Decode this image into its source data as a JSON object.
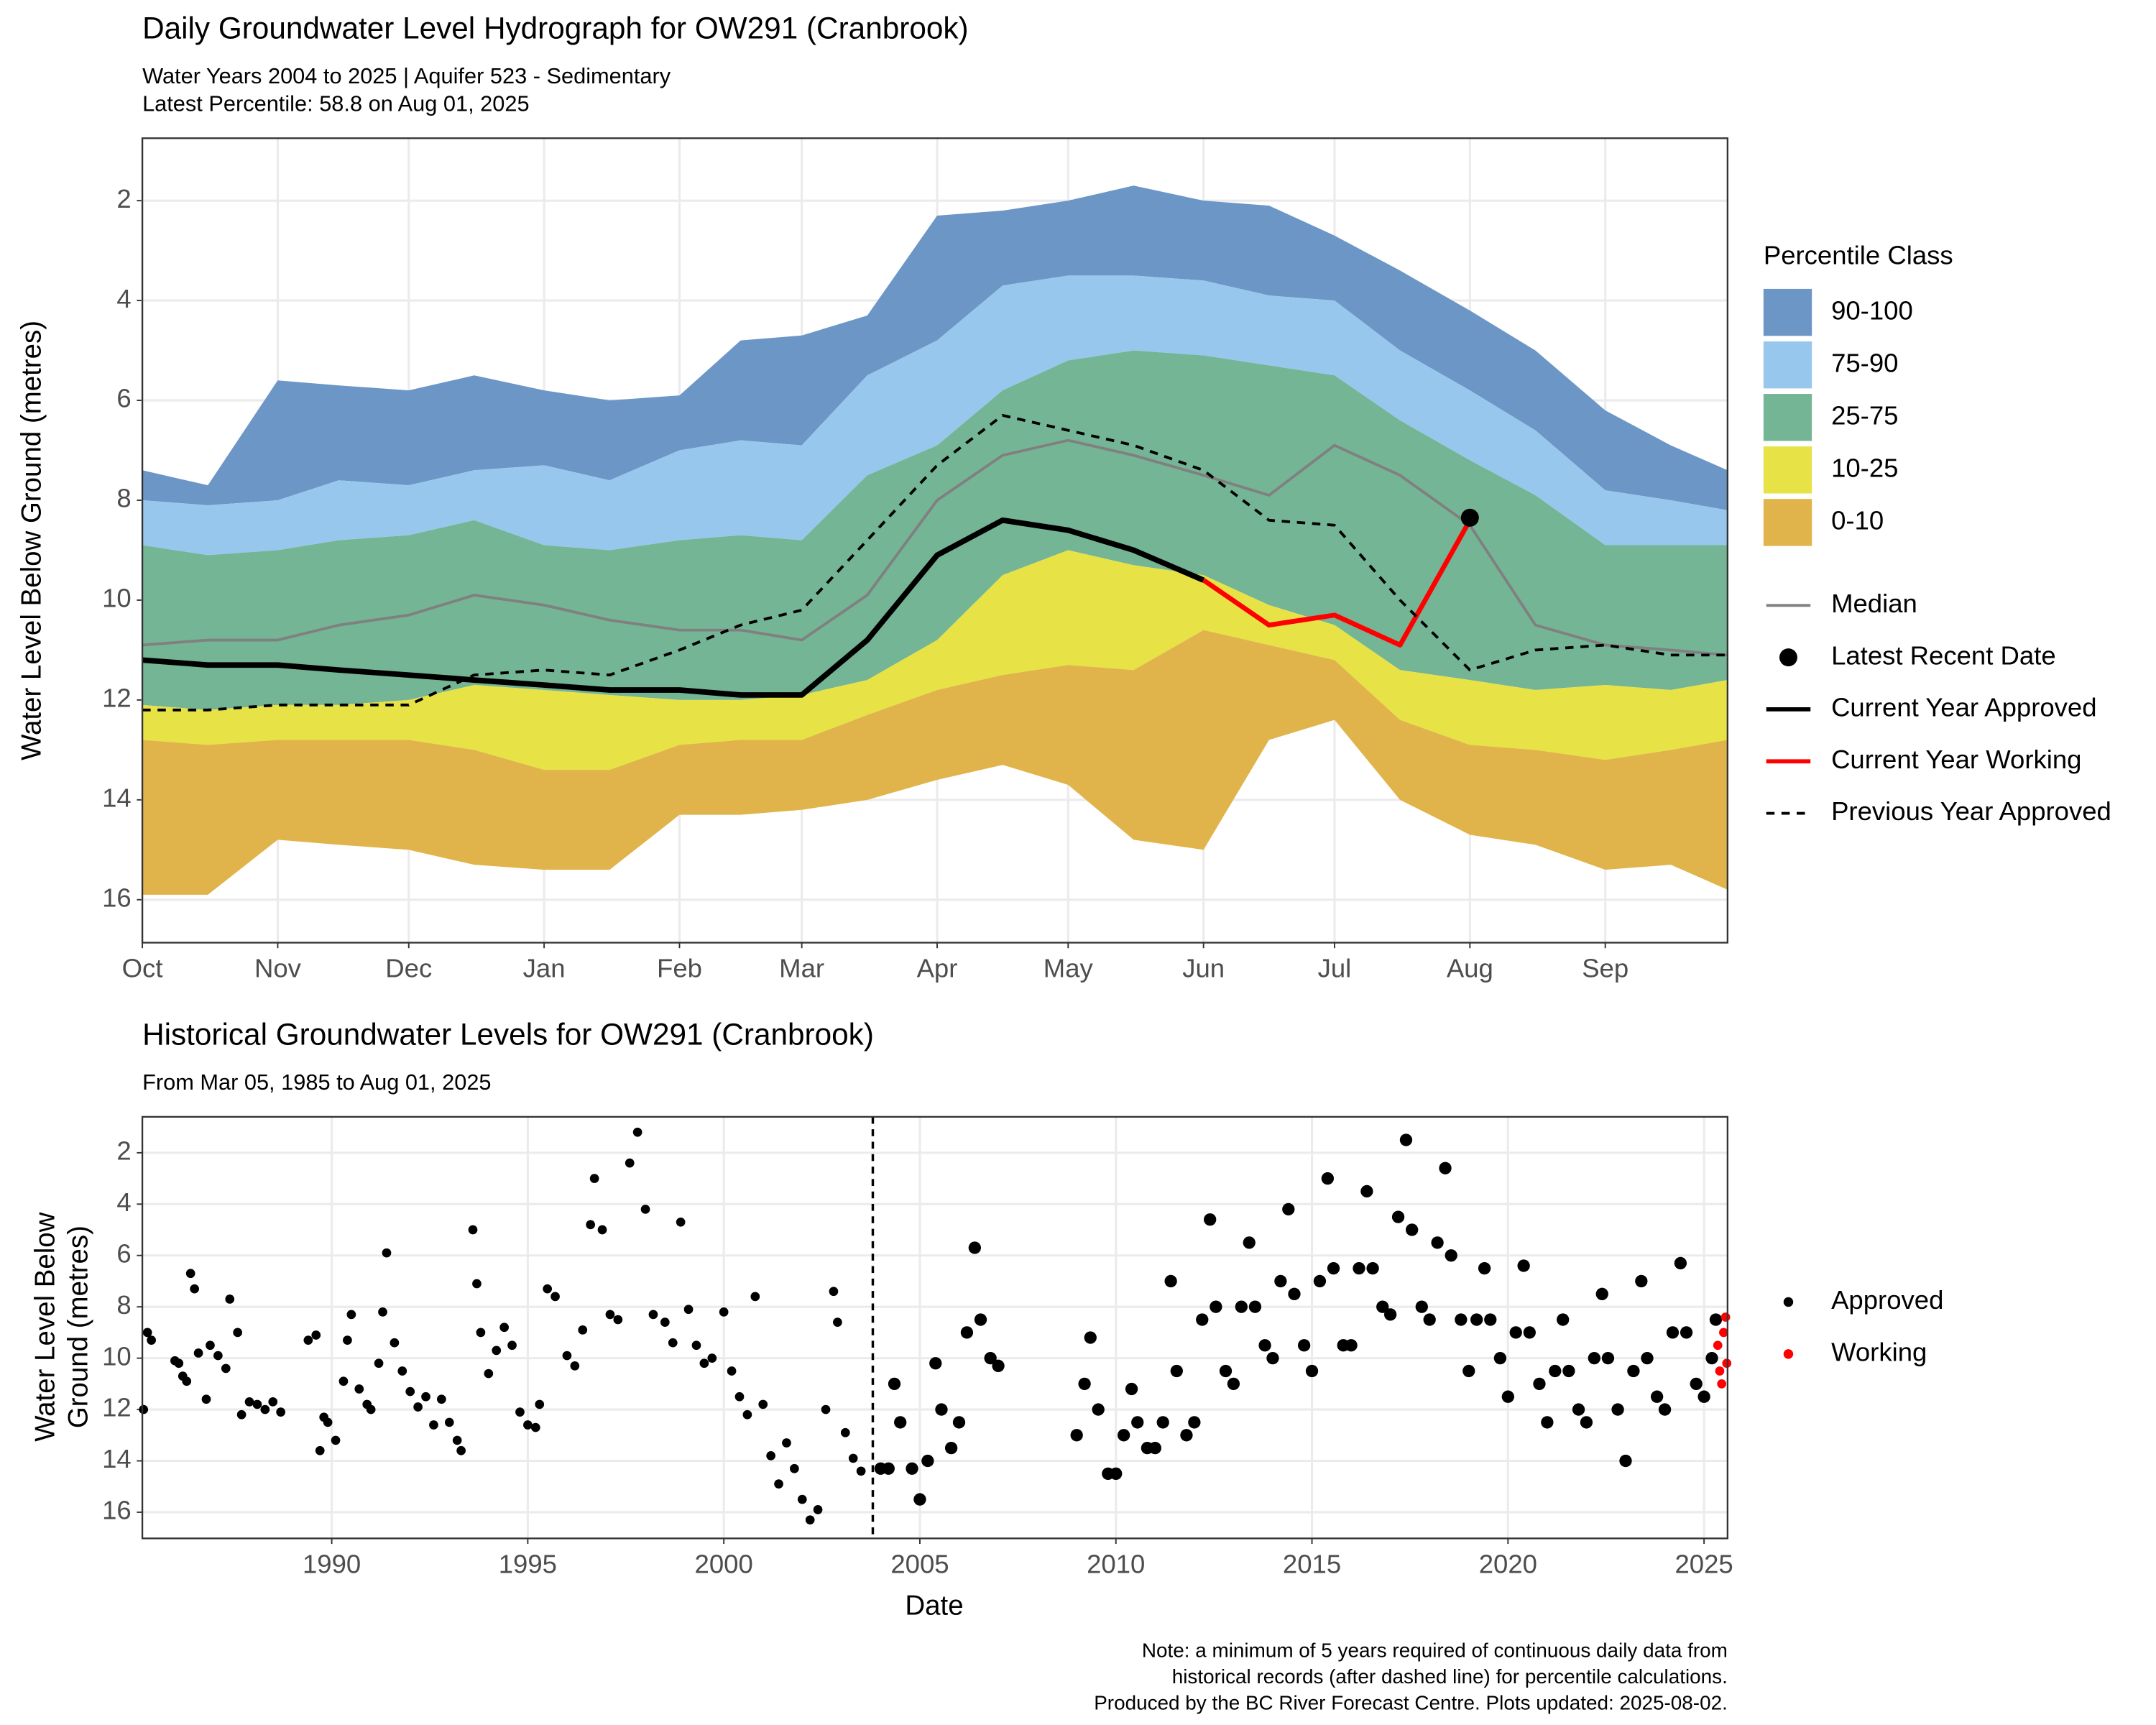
{
  "chart_data": [
    {
      "type": "hydrograph",
      "title": "Daily Groundwater Level Hydrograph for OW291 (Cranbrook)",
      "subtitle": [
        "Water Years 2004 to 2025 | Aquifer 523 - Sedimentary",
        "Latest Percentile: 58.8 on Aug 01, 2025"
      ],
      "ylabel": "Water Level Below Ground (metres)",
      "x": [
        0,
        15,
        31,
        45,
        61,
        76,
        92,
        107,
        123,
        137,
        151,
        166,
        182,
        197,
        212,
        227,
        243,
        258,
        273,
        288,
        304,
        319,
        335,
        350,
        363
      ],
      "xlim": [
        0,
        363
      ],
      "xticks": [
        {
          "value": 0,
          "label": "Oct"
        },
        {
          "value": 31,
          "label": "Nov"
        },
        {
          "value": 61,
          "label": "Dec"
        },
        {
          "value": 92,
          "label": "Jan"
        },
        {
          "value": 123,
          "label": "Feb"
        },
        {
          "value": 151,
          "label": "Mar"
        },
        {
          "value": 182,
          "label": "Apr"
        },
        {
          "value": 212,
          "label": "May"
        },
        {
          "value": 243,
          "label": "Jun"
        },
        {
          "value": 273,
          "label": "Jul"
        },
        {
          "value": 304,
          "label": "Aug"
        },
        {
          "value": 335,
          "label": "Sep"
        }
      ],
      "ylim": [
        16.86,
        0.75
      ],
      "yticks": [
        2,
        4,
        6,
        8,
        10,
        12,
        14,
        16
      ],
      "grid": true,
      "legend_title": "Percentile Class",
      "bands": [
        {
          "name": "90-100",
          "color": "#6b96c6",
          "from": [
            8.0,
            8.1,
            8.0,
            7.6,
            7.7,
            7.4,
            7.3,
            7.6,
            7.0,
            6.8,
            6.9,
            5.5,
            4.8,
            3.7,
            3.5,
            3.5,
            3.6,
            3.9,
            4.0,
            5.0,
            5.8,
            6.6,
            7.8,
            8.0,
            8.2
          ],
          "to": [
            7.4,
            7.7,
            5.6,
            5.7,
            5.8,
            5.5,
            5.8,
            6.0,
            5.9,
            4.8,
            4.7,
            4.3,
            2.3,
            2.2,
            2.0,
            1.7,
            2.0,
            2.1,
            2.7,
            3.4,
            4.2,
            5.0,
            6.2,
            6.9,
            7.4
          ]
        },
        {
          "name": "75-90",
          "color": "#98c7ed",
          "from": [
            8.9,
            9.1,
            9.0,
            8.8,
            8.7,
            8.4,
            8.9,
            9.0,
            8.8,
            8.7,
            8.8,
            7.5,
            6.9,
            5.8,
            5.2,
            5.0,
            5.1,
            5.3,
            5.5,
            6.4,
            7.2,
            7.9,
            8.9,
            8.9,
            8.9
          ],
          "to": [
            8.0,
            8.1,
            8.0,
            7.6,
            7.7,
            7.4,
            7.3,
            7.6,
            7.0,
            6.8,
            6.9,
            5.5,
            4.8,
            3.7,
            3.5,
            3.5,
            3.6,
            3.9,
            4.0,
            5.0,
            5.8,
            6.6,
            7.8,
            8.0,
            8.2
          ]
        },
        {
          "name": "25-75",
          "color": "#74b595",
          "from": [
            12.1,
            12.2,
            12.1,
            12.1,
            12.0,
            11.7,
            11.8,
            11.9,
            12.0,
            12.0,
            11.9,
            11.6,
            10.8,
            9.5,
            9.0,
            9.3,
            9.5,
            10.1,
            10.5,
            11.4,
            11.6,
            11.8,
            11.7,
            11.8,
            11.6
          ],
          "to": [
            8.9,
            9.1,
            9.0,
            8.8,
            8.7,
            8.4,
            8.9,
            9.0,
            8.8,
            8.7,
            8.8,
            7.5,
            6.9,
            5.8,
            5.2,
            5.0,
            5.1,
            5.3,
            5.5,
            6.4,
            7.2,
            7.9,
            8.9,
            8.9,
            8.9
          ]
        },
        {
          "name": "10-25",
          "color": "#e7e245",
          "from": [
            12.8,
            12.9,
            12.8,
            12.8,
            12.8,
            13.0,
            13.4,
            13.4,
            12.9,
            12.8,
            12.8,
            12.3,
            11.8,
            11.5,
            11.3,
            11.4,
            10.6,
            10.9,
            11.2,
            12.4,
            12.9,
            13.0,
            13.2,
            13.0,
            12.8
          ],
          "to": [
            12.1,
            12.2,
            12.1,
            12.1,
            12.0,
            11.7,
            11.8,
            11.9,
            12.0,
            12.0,
            11.9,
            11.6,
            10.8,
            9.5,
            9.0,
            9.3,
            9.5,
            10.1,
            10.5,
            11.4,
            11.6,
            11.8,
            11.7,
            11.8,
            11.6
          ]
        },
        {
          "name": "0-10",
          "color": "#e0b44a",
          "from": [
            15.9,
            15.9,
            14.8,
            14.9,
            15.0,
            15.3,
            15.4,
            15.4,
            14.3,
            14.3,
            14.2,
            14.0,
            13.6,
            13.3,
            13.7,
            14.8,
            15.0,
            12.8,
            12.4,
            14.0,
            14.7,
            14.9,
            15.4,
            15.3,
            15.8
          ],
          "to": [
            12.8,
            12.9,
            12.8,
            12.8,
            12.8,
            13.0,
            13.4,
            13.4,
            12.9,
            12.8,
            12.8,
            12.3,
            11.8,
            11.5,
            11.3,
            11.4,
            10.6,
            10.9,
            11.2,
            12.4,
            12.9,
            13.0,
            13.2,
            13.0,
            12.8
          ]
        }
      ],
      "lines": [
        {
          "name": "Median",
          "color": "#808080",
          "width": 2,
          "dashed": false,
          "values": [
            10.9,
            10.8,
            10.8,
            10.5,
            10.3,
            9.9,
            10.1,
            10.4,
            10.6,
            10.6,
            10.8,
            9.9,
            8.0,
            7.1,
            6.8,
            7.1,
            7.5,
            7.9,
            6.9,
            7.5,
            8.5,
            10.5,
            10.9,
            11.0,
            11.1
          ]
        },
        {
          "name": "Current Year Approved",
          "color": "#000000",
          "width": 4,
          "dashed": false,
          "values": [
            11.2,
            11.3,
            11.3,
            11.4,
            11.5,
            11.6,
            11.7,
            11.8,
            11.8,
            11.9,
            11.9,
            10.8,
            9.1,
            8.4,
            8.6,
            9.0,
            9.6,
            null,
            null,
            null,
            null,
            null,
            null,
            null,
            null
          ]
        },
        {
          "name": "Current Year Working",
          "color": "#ff0000",
          "width": 3.5,
          "dashed": false,
          "values": [
            null,
            null,
            null,
            null,
            null,
            null,
            null,
            null,
            null,
            null,
            null,
            null,
            null,
            null,
            null,
            null,
            9.6,
            10.5,
            10.3,
            10.9,
            8.4,
            null,
            null,
            null,
            null
          ]
        },
        {
          "name": "Previous Year Approved",
          "color": "#000000",
          "width": 2,
          "dashed": true,
          "values": [
            12.2,
            12.2,
            12.1,
            12.1,
            12.1,
            11.5,
            11.4,
            11.5,
            11.0,
            10.5,
            10.2,
            8.8,
            7.3,
            6.3,
            6.6,
            6.9,
            7.4,
            8.4,
            8.5,
            10.0,
            11.4,
            11.0,
            10.9,
            11.1,
            11.1
          ]
        }
      ],
      "points": [
        {
          "name": "Latest Recent Date",
          "color": "#000000",
          "x": 304,
          "y": 8.35
        }
      ],
      "legend_order": [
        "Median",
        "Latest Recent Date",
        "Current Year Approved",
        "Current Year Working",
        "Previous Year Approved"
      ]
    },
    {
      "type": "scatter",
      "title": "Historical Groundwater Levels for OW291 (Cranbrook)",
      "subtitle": [
        "From Mar 05, 1985 to Aug 01, 2025"
      ],
      "ylabel": [
        "Water Level Below",
        "Ground (metres)"
      ],
      "xlabel": "Date",
      "xlim": [
        1985.17,
        2025.6
      ],
      "xticks": [
        1990,
        1995,
        2000,
        2005,
        2010,
        2015,
        2020,
        2025
      ],
      "ylim": [
        17.02,
        0.6
      ],
      "yticks": [
        2,
        4,
        6,
        8,
        10,
        12,
        14,
        16
      ],
      "grid": true,
      "divider_x": 2003.8,
      "series": [
        {
          "name": "Approved",
          "color": "#000000",
          "x": [
            1985.2,
            1985.3,
            1985.4,
            1986.0,
            1986.1,
            1986.2,
            1986.3,
            1986.4,
            1986.5,
            1986.6,
            1986.8,
            1986.9,
            1987.1,
            1987.3,
            1987.4,
            1987.6,
            1987.7,
            1987.9,
            1988.1,
            1988.3,
            1988.5,
            1988.7,
            1989.4,
            1989.6,
            1989.7,
            1989.8,
            1989.9,
            1990.1,
            1990.3,
            1990.4,
            1990.5,
            1990.7,
            1990.9,
            1991.0,
            1991.2,
            1991.3,
            1991.4,
            1991.6,
            1991.8,
            1992.0,
            1992.2,
            1992.4,
            1992.6,
            1992.8,
            1993.0,
            1993.2,
            1993.3,
            1993.6,
            1993.7,
            1993.8,
            1994.0,
            1994.2,
            1994.4,
            1994.6,
            1994.8,
            1995.0,
            1995.2,
            1995.3,
            1995.5,
            1995.7,
            1996.0,
            1996.2,
            1996.4,
            1996.6,
            1996.7,
            1996.9,
            1997.1,
            1997.3,
            1997.6,
            1997.8,
            1998.0,
            1998.2,
            1998.5,
            1998.7,
            1998.9,
            1999.1,
            1999.3,
            1999.5,
            1999.7,
            2000.0,
            2000.2,
            2000.4,
            2000.6,
            2000.8,
            2001.0,
            2001.2,
            2001.4,
            2001.6,
            2001.8,
            2002.0,
            2002.2,
            2002.4,
            2002.6,
            2002.8,
            2002.9,
            2003.1,
            2003.3,
            2003.5,
            2004.0,
            2004.2,
            2004.35,
            2004.5,
            2004.8,
            2005.0,
            2005.2,
            2005.4,
            2005.55,
            2005.8,
            2006.0,
            2006.2,
            2006.4,
            2006.55,
            2006.8,
            2007.0,
            2009.0,
            2009.2,
            2009.35,
            2009.55,
            2009.8,
            2010.0,
            2010.2,
            2010.4,
            2010.55,
            2010.8,
            2011.0,
            2011.2,
            2011.4,
            2011.55,
            2011.8,
            2012.0,
            2012.2,
            2012.4,
            2012.55,
            2012.8,
            2013.0,
            2013.2,
            2013.4,
            2013.55,
            2013.8,
            2014.0,
            2014.2,
            2014.4,
            2014.55,
            2014.8,
            2015.0,
            2015.2,
            2015.4,
            2015.55,
            2015.8,
            2016.0,
            2016.2,
            2016.4,
            2016.55,
            2016.8,
            2017.0,
            2017.2,
            2017.4,
            2017.55,
            2017.8,
            2018.0,
            2018.2,
            2018.4,
            2018.55,
            2018.8,
            2019.0,
            2019.2,
            2019.4,
            2019.55,
            2019.8,
            2020.0,
            2020.2,
            2020.4,
            2020.55,
            2020.8,
            2021.0,
            2021.2,
            2021.4,
            2021.55,
            2021.8,
            2022.0,
            2022.2,
            2022.4,
            2022.55,
            2022.8,
            2023.0,
            2023.2,
            2023.4,
            2023.55,
            2023.8,
            2024.0,
            2024.2,
            2024.4,
            2024.55,
            2024.8,
            2025.0,
            2025.2,
            2025.3
          ],
          "values": [
            12.0,
            9.0,
            9.3,
            10.1,
            10.2,
            10.7,
            10.9,
            6.7,
            7.3,
            9.8,
            11.6,
            9.5,
            9.9,
            10.4,
            7.7,
            9.0,
            12.2,
            11.7,
            11.8,
            12.0,
            11.7,
            12.1,
            9.3,
            9.1,
            13.6,
            12.3,
            12.5,
            13.2,
            10.9,
            9.3,
            8.3,
            11.2,
            11.8,
            12.0,
            10.2,
            8.2,
            5.9,
            9.4,
            10.5,
            11.3,
            11.9,
            11.5,
            12.6,
            11.6,
            12.5,
            13.2,
            13.6,
            5.0,
            7.1,
            9.0,
            10.6,
            9.7,
            8.8,
            9.5,
            12.1,
            12.6,
            12.7,
            11.8,
            7.3,
            7.6,
            9.9,
            10.3,
            8.9,
            4.8,
            3.0,
            5.0,
            8.3,
            8.5,
            2.4,
            1.2,
            4.2,
            8.3,
            8.6,
            9.4,
            4.7,
            8.1,
            9.5,
            10.2,
            10.0,
            8.2,
            10.5,
            11.5,
            12.2,
            7.6,
            11.8,
            13.8,
            14.9,
            13.3,
            14.3,
            15.5,
            16.3,
            15.9,
            12.0,
            7.4,
            8.6,
            12.9,
            13.9,
            14.4,
            14.3,
            14.3,
            11.0,
            12.5,
            14.3,
            15.5,
            14.0,
            10.2,
            12.0,
            13.5,
            12.5,
            9.0,
            5.7,
            8.5,
            10.0,
            10.3,
            13.0,
            11.0,
            9.2,
            12.0,
            14.5,
            14.5,
            13.0,
            11.2,
            12.5,
            13.5,
            13.5,
            12.5,
            7.0,
            10.5,
            13.0,
            12.5,
            8.5,
            4.6,
            8.0,
            10.5,
            11.0,
            8.0,
            5.5,
            8.0,
            9.5,
            10.0,
            7.0,
            4.2,
            7.5,
            9.5,
            10.5,
            7.0,
            3.0,
            6.5,
            9.5,
            9.5,
            6.5,
            3.5,
            6.5,
            8.0,
            8.3,
            4.5,
            1.5,
            5.0,
            8.0,
            8.5,
            5.5,
            2.6,
            6.0,
            8.5,
            10.5,
            8.5,
            6.5,
            8.5,
            10.0,
            11.5,
            9.0,
            6.4,
            9.0,
            11.0,
            12.5,
            10.5,
            8.5,
            10.5,
            12.0,
            12.5,
            10.0,
            7.5,
            10.0,
            12.0,
            14.0,
            10.5,
            7.0,
            10.0,
            11.5,
            12.0,
            9.0,
            6.3,
            9.0,
            11.0,
            11.5,
            10.0,
            8.5
          ]
        },
        {
          "name": "Working",
          "color": "#ff0000",
          "x": [
            2025.35,
            2025.4,
            2025.45,
            2025.5,
            2025.55,
            2025.58
          ],
          "values": [
            9.5,
            10.5,
            11.0,
            9.0,
            8.4,
            10.2
          ]
        }
      ]
    }
  ],
  "note": [
    "Note: a minimum of 5 years required of continuous daily data from",
    "historical records (after dashed line) for percentile calculations.",
    "Produced by the BC River Forecast Centre. Plots updated: 2025-08-02."
  ]
}
